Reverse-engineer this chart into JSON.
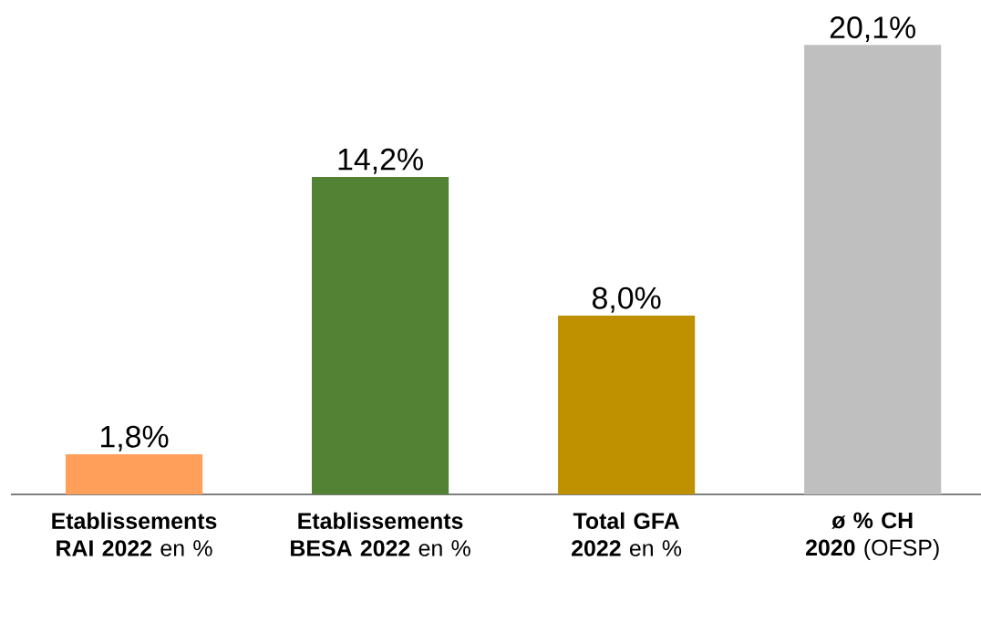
{
  "chart_data": {
    "type": "bar",
    "categories": [
      "**Etablissements RAI 2022** en %",
      "**Etablissements BESA 2022** en %",
      "**Total GFA 2022** en %",
      "**ø % CH 2020** (OFSP)"
    ],
    "values": [
      1.8,
      14.2,
      8.0,
      20.1
    ],
    "colors": [
      "#ff9f5a",
      "#548235",
      "#bf9000",
      "#bfbfbf"
    ],
    "value_labels": [
      "1,8%",
      "14,2%",
      "8,0%",
      "20,1%"
    ],
    "orientation": "vertical"
  }
}
